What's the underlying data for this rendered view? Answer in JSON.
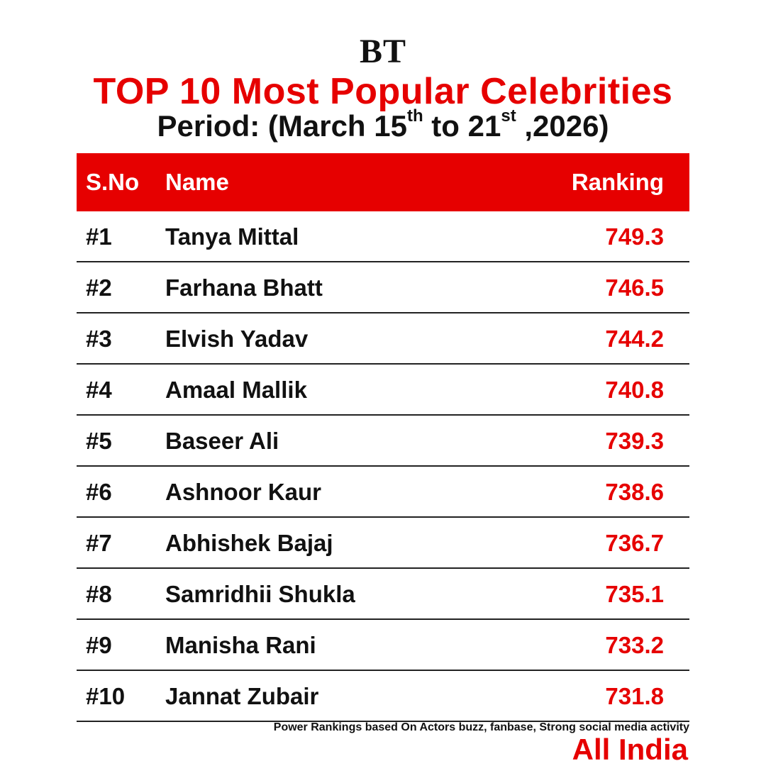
{
  "brand": {
    "logo_text": "BT"
  },
  "heading": {
    "title": "TOP 10 Most Popular Celebrities",
    "period_prefix": "Period: (March 15",
    "period_sup1": "th",
    "period_mid": " to 21",
    "period_sup2": "st",
    "period_suffix": " ,2026)"
  },
  "table": {
    "headers": {
      "sno": "S.No",
      "name": "Name",
      "ranking": "Ranking"
    },
    "rows": [
      {
        "sno": "#1",
        "name": "Tanya Mittal",
        "ranking": "749.3"
      },
      {
        "sno": "#2",
        "name": "Farhana Bhatt",
        "ranking": "746.5"
      },
      {
        "sno": "#3",
        "name": "Elvish Yadav",
        "ranking": "744.2"
      },
      {
        "sno": "#4",
        "name": "Amaal Mallik",
        "ranking": "740.8"
      },
      {
        "sno": "#5",
        "name": "Baseer Ali",
        "ranking": "739.3"
      },
      {
        "sno": "#6",
        "name": "Ashnoor Kaur",
        "ranking": "738.6"
      },
      {
        "sno": "#7",
        "name": "Abhishek Bajaj",
        "ranking": "736.7"
      },
      {
        "sno": "#8",
        "name": "Samridhii Shukla",
        "ranking": "735.1"
      },
      {
        "sno": "#9",
        "name": "Manisha Rani",
        "ranking": "733.2"
      },
      {
        "sno": "#10",
        "name": "Jannat Zubair",
        "ranking": "731.8"
      }
    ]
  },
  "footer": {
    "note": "Power Rankings based On Actors buzz, fanbase, Strong social media activity",
    "region": "All India"
  },
  "colors": {
    "accent": "#e60000",
    "text": "#111111",
    "background": "#ffffff"
  }
}
